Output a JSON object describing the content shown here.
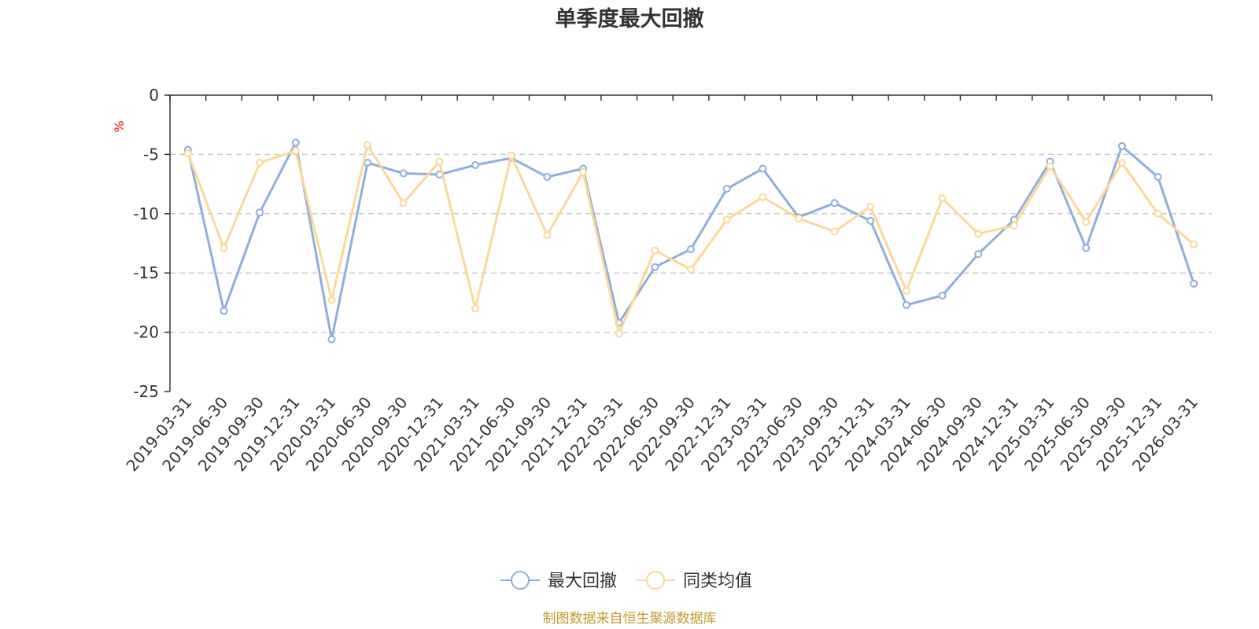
{
  "chart_data": {
    "type": "line",
    "title": "单季度最大回撤",
    "ylabel": "%",
    "ylim": [
      -25,
      0
    ],
    "yticks": [
      0,
      -5,
      -10,
      -15,
      -20,
      -25
    ],
    "grid": true,
    "legend_position": "bottom",
    "categories": [
      "2019-03-31",
      "2019-06-30",
      "2019-09-30",
      "2019-12-31",
      "2020-03-31",
      "2020-06-30",
      "2020-09-30",
      "2020-12-31",
      "2021-03-31",
      "2021-06-30",
      "2021-09-30",
      "2021-12-31",
      "2022-03-31",
      "2022-06-30",
      "2022-09-30",
      "2022-12-31",
      "2023-03-31",
      "2023-06-30",
      "2023-09-30",
      "2023-12-31",
      "2024-03-31",
      "2024-06-30",
      "2024-09-30",
      "2024-12-31",
      "2025-03-31",
      "2025-06-30",
      "2025-09-30",
      "2025-12-31",
      "2026-03-31"
    ],
    "series": [
      {
        "name": "最大回撤",
        "color": "#8eaedc",
        "values": [
          -4.6,
          -18.2,
          -9.9,
          -4.0,
          -20.6,
          -5.7,
          -6.6,
          -6.7,
          -5.9,
          -5.3,
          -6.9,
          -6.2,
          -19.2,
          -14.5,
          -13.0,
          -7.9,
          -6.2,
          -10.3,
          -9.1,
          -10.6,
          -17.7,
          -16.9,
          -13.4,
          -10.5,
          -5.6,
          -12.9,
          -4.3,
          -6.9,
          -15.9
        ]
      },
      {
        "name": "同类均值",
        "color": "#fbd898",
        "values": [
          -4.9,
          -12.9,
          -5.7,
          -4.7,
          -17.3,
          -4.2,
          -9.1,
          -5.6,
          -18.0,
          -5.1,
          -11.8,
          -6.5,
          -20.1,
          -13.1,
          -14.7,
          -10.5,
          -8.6,
          -10.4,
          -11.5,
          -9.4,
          -16.5,
          -8.7,
          -11.7,
          -11.0,
          -6.0,
          -10.7,
          -5.7,
          -10.0,
          -12.6
        ]
      }
    ],
    "source_note": "制图数据来自恒生聚源数据库",
    "source_color": "#c49a2c",
    "unit_color": "#ff0000"
  }
}
